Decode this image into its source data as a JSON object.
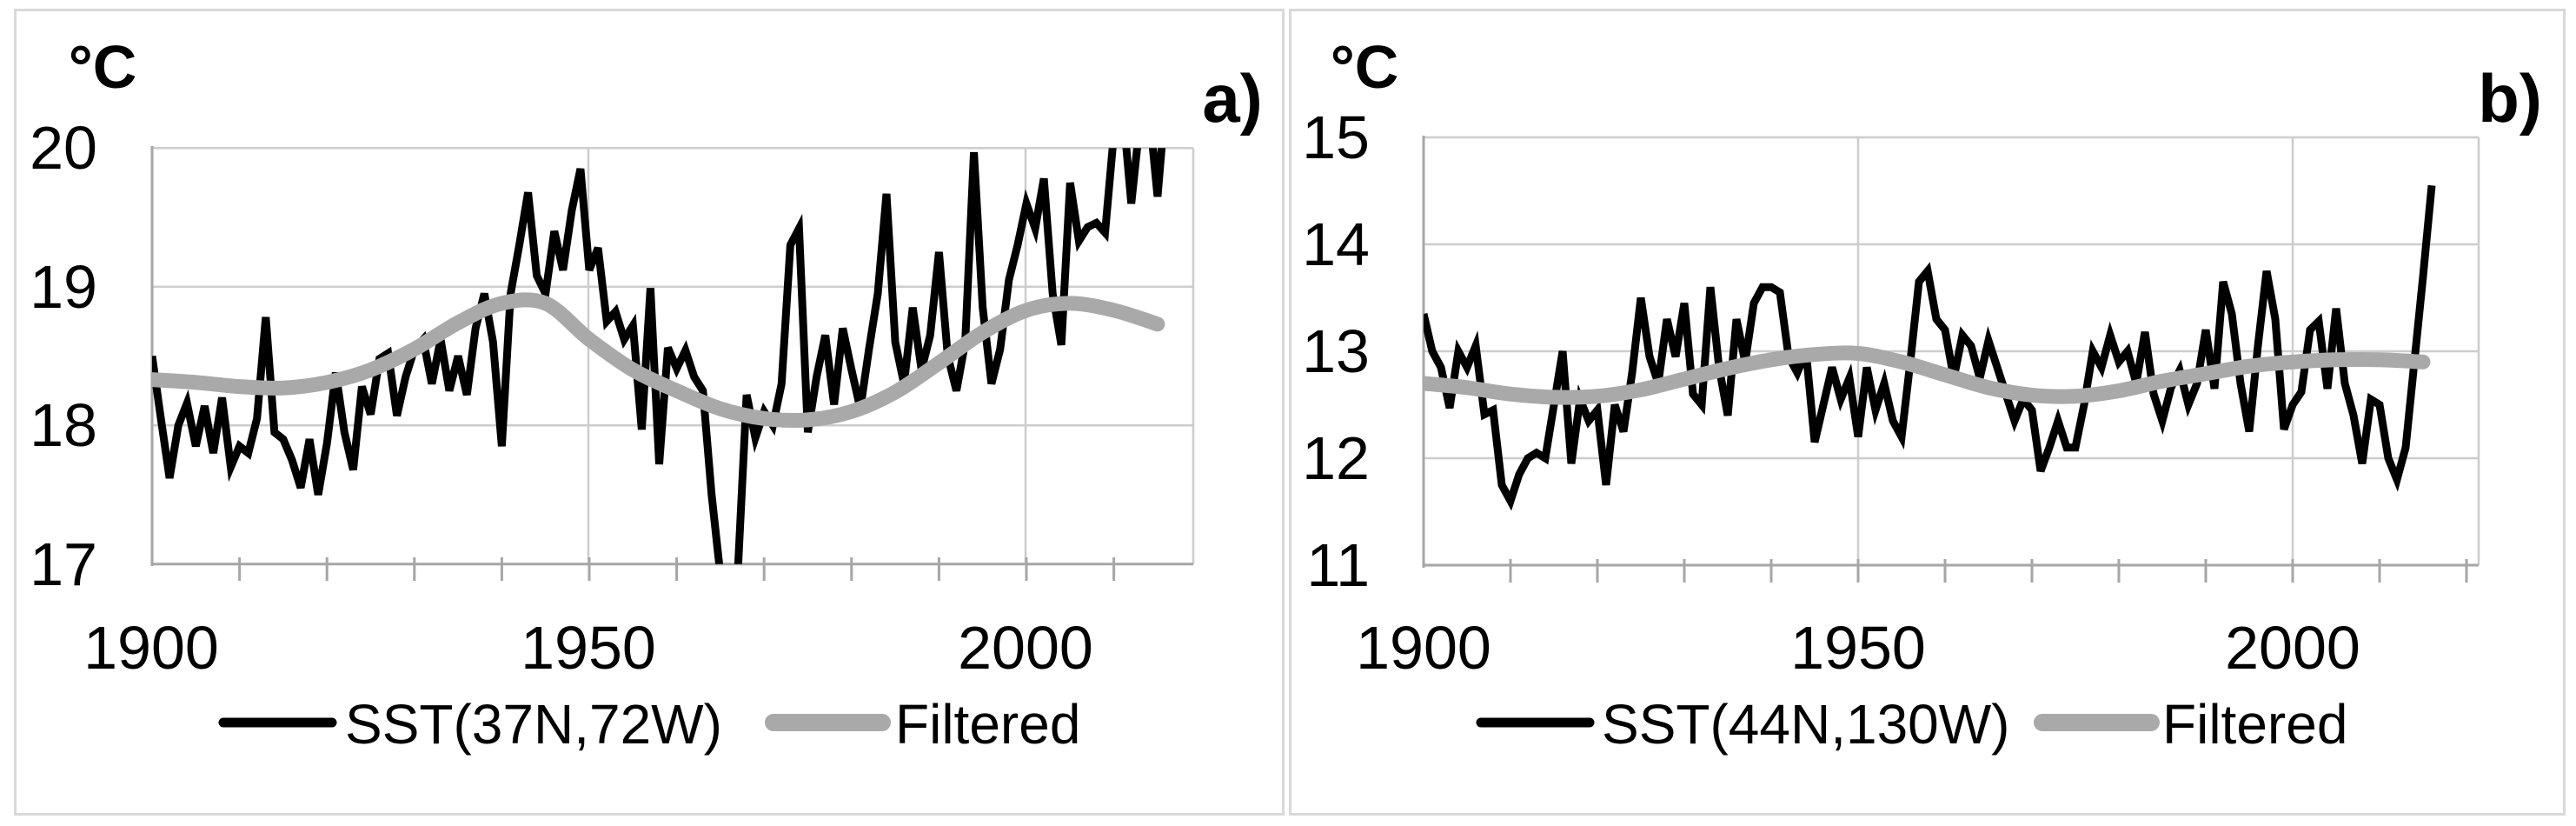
{
  "figure": {
    "background": "#ffffff",
    "panel_border_color": "#d9d9d9",
    "gridline_color": "#cdcdcd",
    "axis_color": "#a6a6a6",
    "text_color": "#000000"
  },
  "chart_data": [
    {
      "type": "line",
      "panel_label": "a)",
      "unit_label": "°C",
      "xlabel": "",
      "ylabel": "°C",
      "xlim": [
        1900,
        2021
      ],
      "ylim": [
        17,
        20
      ],
      "x_tick_labels": [
        "1900",
        "1950",
        "2000"
      ],
      "x_tick_years": [
        1900,
        1950,
        2000
      ],
      "y_tick_labels": [
        "20",
        "19",
        "18",
        "17"
      ],
      "y_tick_values": [
        20,
        19,
        18,
        17
      ],
      "grid": true,
      "legend_position": "bottom",
      "series": [
        {
          "name": "SST(37N,72W)",
          "color": "#000000",
          "width": 9,
          "smooth": false,
          "start_year": 1900,
          "step": 1,
          "values": [
            18.5,
            18.05,
            17.62,
            18.0,
            18.16,
            17.85,
            18.14,
            17.8,
            18.2,
            17.7,
            17.85,
            17.8,
            18.05,
            18.78,
            17.95,
            17.9,
            17.75,
            17.55,
            17.9,
            17.5,
            17.87,
            18.38,
            17.95,
            17.68,
            18.28,
            18.08,
            18.48,
            18.52,
            18.07,
            18.35,
            18.55,
            18.62,
            18.3,
            18.62,
            18.25,
            18.5,
            18.22,
            18.7,
            18.95,
            18.6,
            17.85,
            18.95,
            19.3,
            19.68,
            19.08,
            18.95,
            19.4,
            19.12,
            19.55,
            19.85,
            19.12,
            19.28,
            18.75,
            18.82,
            18.62,
            18.72,
            17.97,
            18.99,
            17.72,
            18.56,
            18.41,
            18.54,
            18.35,
            18.25,
            17.5,
            16.92,
            16.85,
            16.95,
            18.22,
            17.91,
            18.1,
            18.0,
            18.3,
            19.3,
            19.42,
            17.95,
            18.35,
            18.65,
            18.15,
            18.7,
            18.4,
            18.12,
            18.55,
            18.95,
            19.67,
            18.6,
            18.3,
            18.85,
            18.4,
            18.65,
            19.25,
            18.5,
            18.25,
            18.6,
            19.97,
            18.85,
            18.3,
            18.55,
            19.05,
            19.3,
            19.6,
            19.42,
            19.78,
            18.95,
            18.58,
            19.75,
            19.33,
            19.43,
            19.46,
            19.39,
            20.1,
            20.3,
            19.6,
            20.2,
            20.3,
            19.65,
            20.4
          ]
        },
        {
          "name": "Filtered",
          "color": "#a9a9a9",
          "width": 17,
          "smooth": true,
          "start_year": 1900,
          "step": 5,
          "values": [
            18.33,
            18.31,
            18.28,
            18.27,
            18.31,
            18.4,
            18.55,
            18.74,
            18.88,
            18.88,
            18.62,
            18.4,
            18.25,
            18.12,
            18.05,
            18.04,
            18.1,
            18.24,
            18.45,
            18.67,
            18.83,
            18.88,
            18.83,
            18.73
          ]
        }
      ]
    },
    {
      "type": "line",
      "panel_label": "b)",
      "unit_label": "°C",
      "xlabel": "",
      "ylabel": "°C",
      "xlim": [
        1900,
        2021
      ],
      "ylim": [
        11,
        15
      ],
      "x_tick_labels": [
        "1900",
        "1950",
        "2000"
      ],
      "x_tick_years": [
        1900,
        1950,
        2000
      ],
      "y_tick_labels": [
        "15",
        "14",
        "13",
        "12",
        "11"
      ],
      "y_tick_values": [
        15,
        14,
        13,
        12,
        11
      ],
      "grid": true,
      "legend_position": "bottom",
      "series": [
        {
          "name": "SST(44N,130W)",
          "color": "#000000",
          "width": 9,
          "smooth": false,
          "start_year": 1900,
          "step": 1,
          "values": [
            13.35,
            13.0,
            12.85,
            12.47,
            13.0,
            12.85,
            13.05,
            12.41,
            12.45,
            11.75,
            11.6,
            11.85,
            12.0,
            12.05,
            12.0,
            12.5,
            13.0,
            11.95,
            12.55,
            12.35,
            12.45,
            11.75,
            12.5,
            12.25,
            12.8,
            13.5,
            12.95,
            12.7,
            13.3,
            12.95,
            13.45,
            12.6,
            12.5,
            13.6,
            12.85,
            12.4,
            13.3,
            12.9,
            13.45,
            13.6,
            13.6,
            13.55,
            12.95,
            12.8,
            13.0,
            12.15,
            12.5,
            12.85,
            12.55,
            12.75,
            12.2,
            12.85,
            12.45,
            12.7,
            12.35,
            12.2,
            12.9,
            13.65,
            13.75,
            13.3,
            13.2,
            12.75,
            13.15,
            13.05,
            12.75,
            13.1,
            12.85,
            12.6,
            12.35,
            12.55,
            12.45,
            11.88,
            12.1,
            12.35,
            12.1,
            12.1,
            12.5,
            13.0,
            12.85,
            13.15,
            12.9,
            13.0,
            12.7,
            13.18,
            12.6,
            12.35,
            12.66,
            12.82,
            12.5,
            12.7,
            13.2,
            12.65,
            13.65,
            13.35,
            12.7,
            12.25,
            13.05,
            13.75,
            13.3,
            12.27,
            12.5,
            12.62,
            13.2,
            13.28,
            12.65,
            13.4,
            12.7,
            12.4,
            11.95,
            12.55,
            12.5,
            12.0,
            11.8,
            12.1,
            12.9,
            13.7,
            14.55
          ]
        },
        {
          "name": "Filtered",
          "color": "#a9a9a9",
          "width": 17,
          "smooth": true,
          "start_year": 1900,
          "step": 5,
          "values": [
            12.7,
            12.66,
            12.6,
            12.57,
            12.58,
            12.64,
            12.74,
            12.84,
            12.92,
            12.97,
            12.98,
            12.9,
            12.78,
            12.66,
            12.59,
            12.58,
            12.63,
            12.72,
            12.79,
            12.86,
            12.9,
            12.92,
            12.92,
            12.9
          ]
        }
      ]
    }
  ]
}
